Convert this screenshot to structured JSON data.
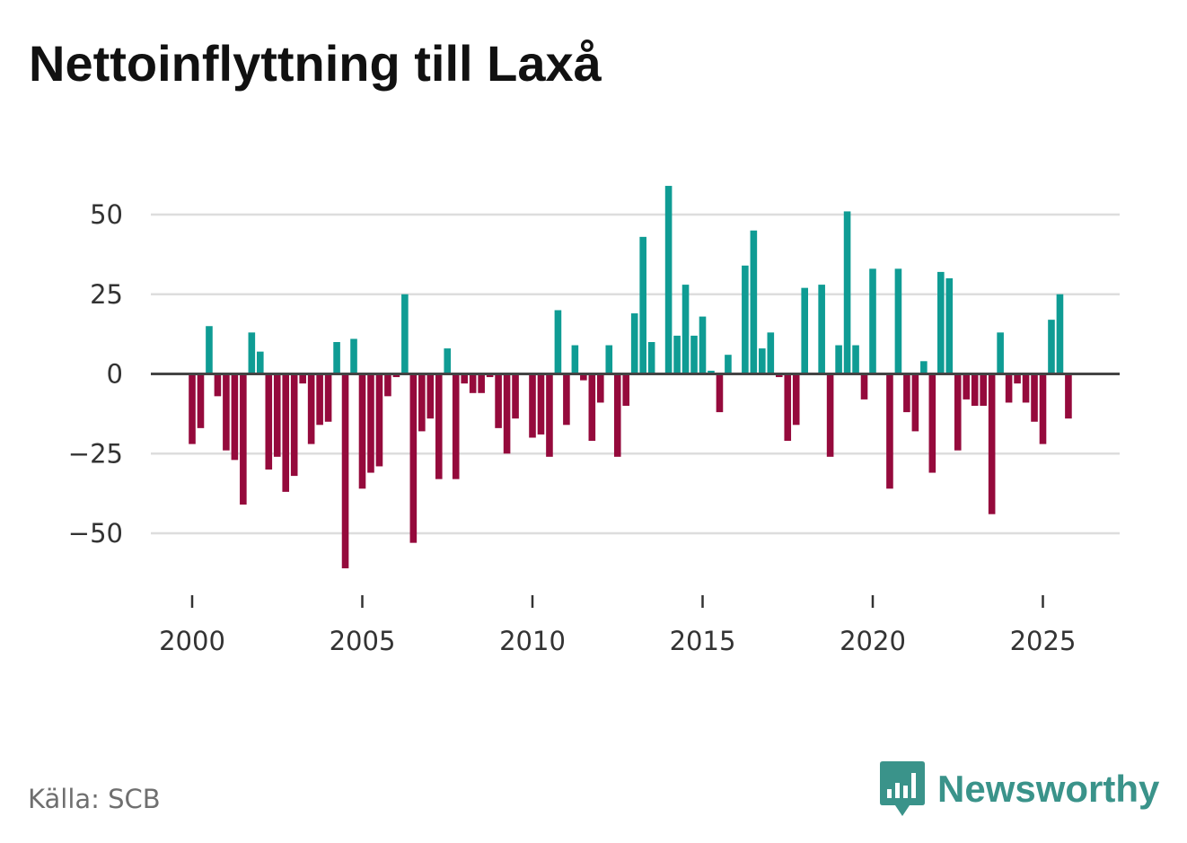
{
  "title": "Nettoinflyttning till Laxå",
  "source": "Källa: SCB",
  "brand": {
    "name": "Newsworthy",
    "icon": "bar-chart-speech-icon"
  },
  "colors": {
    "positive": "#0f9c94",
    "negative": "#950a3c",
    "grid": "#dddddd",
    "zero": "#444444",
    "brand": "#3a938a"
  },
  "chart_data": {
    "type": "bar",
    "title": "Nettoinflyttning till Laxå",
    "xlabel": "",
    "ylabel": "",
    "frequency": "quarterly",
    "ylim": [
      -66,
      66
    ],
    "yticks": [
      -50,
      -25,
      0,
      25,
      50
    ],
    "ytick_labels": [
      "−50",
      "−25",
      "0",
      "25",
      "50"
    ],
    "xlim": [
      1999.25,
      2027.0
    ],
    "xticks": [
      2000,
      2005,
      2010,
      2015,
      2020,
      2025
    ],
    "xtick_labels": [
      "2000",
      "2005",
      "2010",
      "2015",
      "2020",
      "2025"
    ],
    "grid": true,
    "series": [
      {
        "name": "Nettoinflyttning",
        "start": [
          2000,
          1
        ],
        "values": [
          -22,
          -17,
          15,
          -7,
          -24,
          -27,
          -41,
          13,
          7,
          -30,
          -26,
          -37,
          -32,
          -3,
          -22,
          -16,
          -15,
          10,
          -61,
          11,
          -36,
          -31,
          -29,
          -7,
          -1,
          25,
          -53,
          -18,
          -14,
          -33,
          8,
          -33,
          -3,
          -6,
          -6,
          -1,
          -17,
          -25,
          -14,
          0,
          -20,
          -19,
          -26,
          20,
          -16,
          9,
          -2,
          -21,
          -9,
          9,
          -26,
          -10,
          19,
          43,
          10,
          0,
          59,
          12,
          28,
          12,
          18,
          1,
          -12,
          6,
          0,
          34,
          45,
          8,
          13,
          -1,
          -21,
          -16,
          27,
          0,
          28,
          -26,
          9,
          51,
          9,
          -8,
          33,
          0,
          -36,
          33,
          -12,
          -18,
          4,
          -31,
          32,
          30,
          -24,
          -8,
          -10,
          -10,
          -44,
          13,
          -9,
          -3,
          -9,
          -15,
          -22,
          17,
          25,
          -14
        ]
      }
    ]
  }
}
